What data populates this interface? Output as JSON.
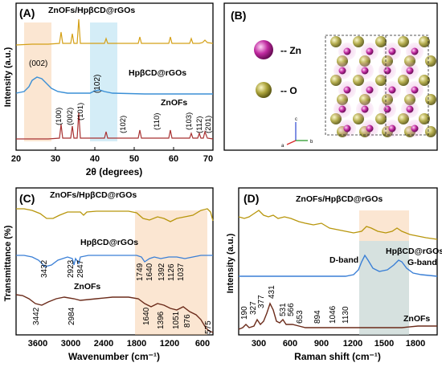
{
  "chart_data": [
    {
      "panel": "(A)",
      "type": "line",
      "xlabel": "2θ (degrees)",
      "ylabel": "Intensity (a.u.)",
      "xlim": [
        20,
        70
      ],
      "x_ticks": [
        "20",
        "30",
        "40",
        "50",
        "60",
        "70"
      ],
      "series": [
        {
          "name": "ZnOFs/HpβCD@rGOs",
          "color": "#d4a017",
          "points": [
            [
              20,
              0.1
            ],
            [
              31.8,
              0.55
            ],
            [
              34.4,
              0.45
            ],
            [
              36.2,
              0.9
            ],
            [
              47.5,
              0.2
            ],
            [
              56.6,
              0.3
            ],
            [
              62.9,
              0.25
            ],
            [
              68,
              0.2
            ],
            [
              70,
              0.1
            ]
          ]
        },
        {
          "name": "HpβCD@rGOs",
          "color": "#3a8fd6",
          "points": [
            [
              20,
              0.1
            ],
            [
              22,
              0.3
            ],
            [
              25.5,
              1.0
            ],
            [
              30,
              0.3
            ],
            [
              36,
              0.05
            ],
            [
              43,
              0.25
            ],
            [
              50,
              0.05
            ],
            [
              70,
              0.02
            ]
          ]
        },
        {
          "name": "ZnOFs",
          "color": "#a83232",
          "points": [
            [
              20,
              0.05
            ],
            [
              31.8,
              0.6
            ],
            [
              34.4,
              0.5
            ],
            [
              36.2,
              1.0
            ],
            [
              47.5,
              0.25
            ],
            [
              56.6,
              0.35
            ],
            [
              62.9,
              0.3
            ],
            [
              66.4,
              0.15
            ],
            [
              67.9,
              0.25
            ],
            [
              69.1,
              0.2
            ],
            [
              70,
              0.05
            ]
          ]
        }
      ],
      "annotations": [
        "(002)",
        "(102)",
        "(100)",
        "(002)",
        "(101)",
        "(102)",
        "(110)",
        "(103)",
        "(112)",
        "(201)"
      ]
    },
    {
      "panel": "(C)",
      "type": "line",
      "xlabel": "Wavenumber (cm⁻¹)",
      "ylabel": "Transmittance (%)",
      "xlim": [
        4000,
        400
      ],
      "x_ticks": [
        "3600",
        "3000",
        "2400",
        "1800",
        "1200",
        "600"
      ],
      "series": [
        {
          "name": "ZnOFs/HpβCD@rGOs",
          "color": "#b8960c"
        },
        {
          "name": "HpβCD@rGOs",
          "color": "#3a7fd6"
        },
        {
          "name": "ZnOFs",
          "color": "#6b2b1a"
        }
      ],
      "annotations": [
        "3432",
        "2923",
        "2847",
        "1749",
        "1640",
        "1392",
        "1126",
        "1037",
        "3442",
        "2984",
        "1640",
        "1396",
        "1051",
        "876",
        "575"
      ]
    },
    {
      "panel": "(D)",
      "type": "line",
      "xlabel": "Raman shift (cm⁻¹)",
      "ylabel": "Intensity (a.u.)",
      "xlim": [
        100,
        2000
      ],
      "x_ticks": [
        "300",
        "600",
        "900",
        "1200",
        "1500",
        "1800"
      ],
      "series": [
        {
          "name": "ZnOFs/HpβCD@rGOs",
          "color": "#b8960c"
        },
        {
          "name": "HpβCD@rGOs",
          "color": "#3a7fd6"
        },
        {
          "name": "ZnOFs",
          "color": "#6b2b1a"
        }
      ],
      "annotations": [
        "D-band",
        "G-band",
        "190",
        "327",
        "377",
        "431",
        "531",
        "566",
        "653",
        "894",
        "1046",
        "1130"
      ]
    }
  ],
  "diagram": {
    "panel": "(B)",
    "legend": [
      {
        "symbol": "Zn",
        "label": "-- Zn",
        "color": "#b0208f"
      },
      {
        "symbol": "O",
        "label": "-- O",
        "color": "#a8a028"
      }
    ],
    "axes": [
      "a",
      "b",
      "c"
    ]
  }
}
